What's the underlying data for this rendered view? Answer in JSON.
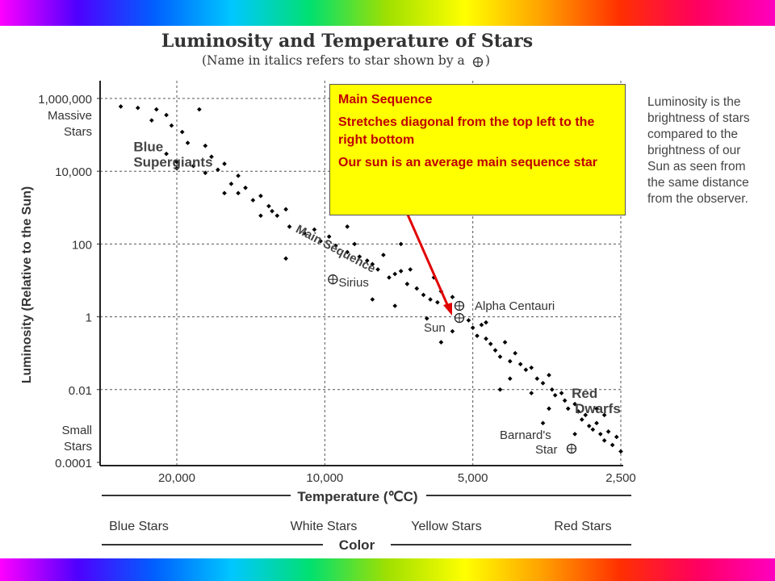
{
  "colors": {
    "rainbow": [
      "#ff00ff",
      "#4f00ff",
      "#0060ff",
      "#00c8ff",
      "#00e070",
      "#a0e000",
      "#ffff00",
      "#ffa000",
      "#ff3000",
      "#ff0060",
      "#ff00c0"
    ],
    "axis_text": "#333333",
    "callout_fill": "#ffff00",
    "callout_text": "#c00000",
    "arrow": "#e00000",
    "dots": "#000000"
  },
  "chart_data": {
    "type": "scatter",
    "title": "Luminosity and Temperature of Stars",
    "subtitle": "(Name in italics refers to star shown by a",
    "subtitle_end": ")",
    "ylabel": "Luminosity (Relative to the Sun)",
    "xlabel": "Temperature (℃C)",
    "color_axis_label": "Color",
    "x_scale": "log-reversed",
    "y_scale": "log",
    "xlim": [
      28000,
      2400
    ],
    "ylim": [
      0.0001,
      1000000
    ],
    "x_ticks": [
      {
        "value": 20000,
        "label": "20,000"
      },
      {
        "value": 10000,
        "label": "10,000"
      },
      {
        "value": 5000,
        "label": "5,000"
      },
      {
        "value": 2500,
        "label": "2,500"
      }
    ],
    "y_ticks": [
      {
        "value": 1000000,
        "label": "1,000,000"
      },
      {
        "value": 10000,
        "label": "10,000"
      },
      {
        "value": 100,
        "label": "100"
      },
      {
        "value": 1,
        "label": "1"
      },
      {
        "value": 0.01,
        "label": "0.01"
      },
      {
        "value": 0.0001,
        "label": "0.0001"
      }
    ],
    "color_bands": [
      "Blue Stars",
      "White Stars",
      "Yellow Stars",
      "Red Stars"
    ],
    "y_extra_labels": {
      "top": [
        "Massive",
        "Stars"
      ],
      "bottom": [
        "Small",
        "Stars"
      ]
    },
    "grid": true,
    "region_labels": [
      {
        "lines": [
          "Blue",
          "Supergiants"
        ],
        "anchor_x": 24500,
        "anchor_y": 35000
      },
      {
        "lines": [
          "Main Sequence"
        ],
        "anchor_x": 11500,
        "anchor_y": 220
      },
      {
        "lines": [
          "Red",
          "Dwarfs"
        ],
        "anchor_x": 3100,
        "anchor_y": 0.006
      }
    ],
    "stars": [
      {
        "name": "Sirius",
        "x": 10000,
        "y": 23
      },
      {
        "name": "Alpha Centauri",
        "x": 5200,
        "y": 1.6
      },
      {
        "name": "Sun",
        "x": 5200,
        "y": 1
      },
      {
        "name": "Barnard's Star",
        "x": 3000,
        "y": 0.0004
      }
    ],
    "points": [
      [
        26000,
        600000
      ],
      [
        24000,
        550000
      ],
      [
        22000,
        500000
      ],
      [
        21000,
        350000
      ],
      [
        22500,
        250000
      ],
      [
        20500,
        180000
      ],
      [
        19500,
        120000
      ],
      [
        19000,
        60000
      ],
      [
        17500,
        50000
      ],
      [
        18000,
        500000
      ],
      [
        21000,
        30000
      ],
      [
        20000,
        18000
      ],
      [
        20000,
        12000
      ],
      [
        18500,
        14000
      ],
      [
        17000,
        25000
      ],
      [
        17500,
        9000
      ],
      [
        16500,
        11000
      ],
      [
        16000,
        16000
      ],
      [
        15500,
        4500
      ],
      [
        15000,
        7500
      ],
      [
        15000,
        2500
      ],
      [
        14500,
        3500
      ],
      [
        14000,
        1600
      ],
      [
        13500,
        2100
      ],
      [
        13000,
        1100
      ],
      [
        12800,
        800
      ],
      [
        12500,
        600
      ],
      [
        12000,
        900
      ],
      [
        11800,
        300
      ],
      [
        11000,
        200
      ],
      [
        10500,
        250
      ],
      [
        10200,
        120
      ],
      [
        9800,
        160
      ],
      [
        9500,
        90
      ],
      [
        9000,
        60
      ],
      [
        8700,
        100
      ],
      [
        8500,
        45
      ],
      [
        8200,
        35
      ],
      [
        8000,
        28
      ],
      [
        7800,
        20
      ],
      [
        7600,
        50
      ],
      [
        7400,
        12
      ],
      [
        7200,
        15
      ],
      [
        7000,
        18
      ],
      [
        7000,
        100
      ],
      [
        6800,
        8
      ],
      [
        6700,
        20
      ],
      [
        6500,
        6
      ],
      [
        6300,
        4
      ],
      [
        6100,
        3
      ],
      [
        5900,
        2.5
      ],
      [
        5800,
        5
      ],
      [
        5600,
        2
      ],
      [
        5500,
        3.5
      ],
      [
        5300,
        1.8
      ],
      [
        5100,
        0.8
      ],
      [
        5000,
        0.5
      ],
      [
        4900,
        0.3
      ],
      [
        4800,
        0.6
      ],
      [
        4700,
        0.25
      ],
      [
        4600,
        0.18
      ],
      [
        4500,
        0.12
      ],
      [
        4400,
        0.08
      ],
      [
        4300,
        0.2
      ],
      [
        4200,
        0.06
      ],
      [
        4100,
        0.1
      ],
      [
        4000,
        0.05
      ],
      [
        3900,
        0.035
      ],
      [
        3800,
        0.04
      ],
      [
        3700,
        0.02
      ],
      [
        3600,
        0.015
      ],
      [
        3500,
        0.025
      ],
      [
        3450,
        0.01
      ],
      [
        3400,
        0.007
      ],
      [
        3300,
        0.008
      ],
      [
        3250,
        0.005
      ],
      [
        3200,
        0.003
      ],
      [
        3100,
        0.004
      ],
      [
        3050,
        0.0025
      ],
      [
        3000,
        0.0015
      ],
      [
        2950,
        0.002
      ],
      [
        2900,
        0.001
      ],
      [
        2850,
        0.0008
      ],
      [
        2800,
        0.0012
      ],
      [
        2750,
        0.0006
      ],
      [
        2700,
        0.0004
      ],
      [
        2650,
        0.0007
      ],
      [
        2600,
        0.0003
      ],
      [
        2550,
        0.0005
      ],
      [
        2500,
        0.0002
      ],
      [
        4700,
        0.7
      ],
      [
        5500,
        0.4
      ],
      [
        6200,
        0.9
      ],
      [
        8000,
        3
      ],
      [
        9500,
        10
      ],
      [
        12000,
        40
      ],
      [
        7200,
        2
      ],
      [
        3800,
        0.008
      ],
      [
        3500,
        0.003
      ],
      [
        4200,
        0.02
      ],
      [
        2800,
        0.003
      ],
      [
        3100,
        0.0006
      ],
      [
        2700,
        0.002
      ],
      [
        5800,
        0.2
      ],
      [
        9000,
        300
      ],
      [
        13500,
        600
      ],
      [
        16000,
        2500
      ],
      [
        6000,
        12
      ],
      [
        4400,
        0.01
      ],
      [
        3600,
        0.0012
      ]
    ]
  },
  "callout": {
    "title": "Main Sequence",
    "line1": "Stretches diagonal from the top left to the right bottom",
    "line2": "Our sun is an average main sequence star"
  },
  "side_note": [
    "Luminosity is the",
    "brightness of stars",
    "compared to the",
    "brightness of our",
    "Sun as seen from",
    "the same distance",
    "from the observer."
  ]
}
